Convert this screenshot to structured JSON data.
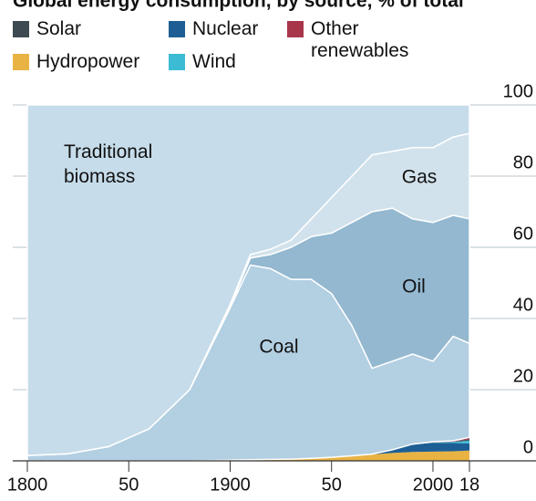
{
  "chart_data": {
    "type": "stacked_area",
    "title": "Global energy consumption, by source, % of total",
    "x": [
      1800,
      1820,
      1840,
      1860,
      1880,
      1900,
      1910,
      1920,
      1930,
      1940,
      1950,
      1960,
      1970,
      1980,
      1990,
      2000,
      2010,
      2018
    ],
    "series": [
      {
        "name": "Hydropower",
        "color": "#e9b344",
        "values": [
          0,
          0,
          0,
          0,
          0,
          0.2,
          0.3,
          0.4,
          0.5,
          0.7,
          1.0,
          1.4,
          1.8,
          2.2,
          2.5,
          2.6,
          2.7,
          2.9
        ]
      },
      {
        "name": "Nuclear",
        "color": "#1d5f94",
        "values": [
          0,
          0,
          0,
          0,
          0,
          0,
          0,
          0,
          0,
          0,
          0,
          0,
          0.1,
          0.9,
          2.1,
          2.5,
          2.3,
          2.0
        ]
      },
      {
        "name": "Wind",
        "color": "#3cbbd4",
        "values": [
          0,
          0,
          0,
          0,
          0,
          0,
          0,
          0,
          0,
          0,
          0,
          0,
          0,
          0,
          0,
          0.05,
          0.3,
          0.8
        ]
      },
      {
        "name": "Solar",
        "color": "#3d4a52",
        "values": [
          0,
          0,
          0,
          0,
          0,
          0,
          0,
          0,
          0,
          0,
          0,
          0,
          0,
          0,
          0,
          0,
          0.05,
          0.4
        ]
      },
      {
        "name": "Other renewables",
        "color": "#a8364b",
        "values": [
          0,
          0,
          0,
          0,
          0,
          0,
          0,
          0,
          0,
          0,
          0,
          0,
          0,
          0,
          0.1,
          0.2,
          0.3,
          0.5
        ]
      },
      {
        "name": "Coal",
        "color": "#b3cfe2",
        "values": [
          1.5,
          2,
          4,
          9,
          20,
          42.8,
          54.7,
          53.6,
          50.5,
          50.3,
          46,
          36.6,
          24.1,
          24.9,
          25.3,
          22.65,
          29.35,
          26.4
        ]
      },
      {
        "name": "Oil",
        "color": "#93b8d0",
        "values": [
          0,
          0,
          0,
          0,
          0,
          0.5,
          2,
          4,
          9,
          12,
          17,
          29,
          44,
          43,
          38,
          39,
          34,
          35
        ]
      },
      {
        "name": "Gas",
        "color": "#d2e2ec",
        "values": [
          0,
          0,
          0,
          0,
          0,
          0.5,
          1,
          1.5,
          2,
          5,
          10,
          13,
          16,
          16,
          20,
          21,
          22,
          24
        ]
      },
      {
        "name": "Traditional biomass",
        "color": "#c6dcea",
        "values": [
          98.5,
          98,
          96,
          91,
          80,
          56,
          42,
          40.5,
          38,
          32,
          26,
          20,
          14,
          13,
          12,
          12,
          9,
          8
        ]
      }
    ],
    "legend": [
      "Solar",
      "Nuclear",
      "Other renewables",
      "Hydropower",
      "Wind"
    ],
    "xlim": [
      1800,
      2018
    ],
    "xticks": [
      1800,
      {
        "value": 1850,
        "label": "50"
      },
      1900,
      {
        "value": 1950,
        "label": "50"
      },
      2000,
      {
        "value": 2018,
        "label": "18"
      }
    ],
    "ylim": [
      0,
      100
    ],
    "yticks": [
      0,
      20,
      40,
      60,
      80,
      100
    ],
    "grid": true
  }
}
